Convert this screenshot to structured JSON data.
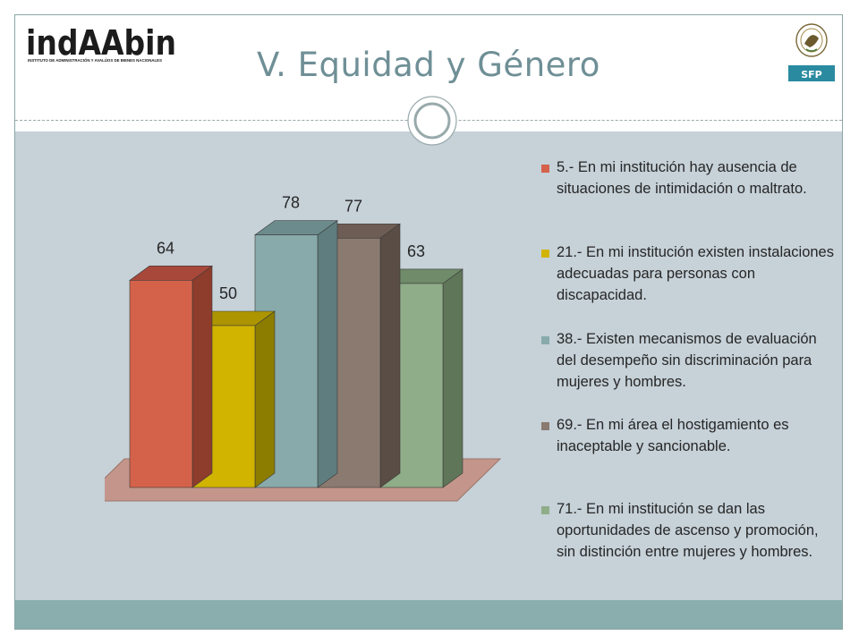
{
  "header": {
    "title": "V. Equidad y Género",
    "logo_left": {
      "name": "indAAbin",
      "tagline": "INSTITUTO DE ADMINISTRACIÓN Y AVALÚOS DE BIENES NACIONALES"
    },
    "logo_right": {
      "name": "SFP"
    }
  },
  "chart_data": {
    "type": "bar",
    "style": "3d-clustered",
    "categories": [
      "5.- En mi institución hay ausencia de situaciones de intimidación o maltrato.",
      "21.- En mi institución existen instalaciones adecuadas para personas con discapacidad.",
      "38.- Existen mecanismos de evaluación del desempeño sin discriminación para mujeres y hombres.",
      "69.- En mi área el hostigamiento es inaceptable y sancionable.",
      "71.- En mi institución se dan las oportunidades de ascenso y promoción, sin distinción entre mujeres y hombres."
    ],
    "values": [
      64,
      50,
      78,
      77,
      63
    ],
    "colors": [
      "#d4624a",
      "#d1b400",
      "#89aaab",
      "#8a7a70",
      "#8fad88"
    ],
    "side_colors": [
      "#8e3c2c",
      "#8c7d00",
      "#5f7d7e",
      "#5a4d46",
      "#5f7658"
    ],
    "top_colors": [
      "#a8483a",
      "#ad9500",
      "#6c8b8c",
      "#6d5d54",
      "#6f8b69"
    ],
    "floor_color": "#c4968b",
    "ylim": [
      0,
      100
    ],
    "data_labels": true,
    "grid": false,
    "legend_position": "right"
  }
}
